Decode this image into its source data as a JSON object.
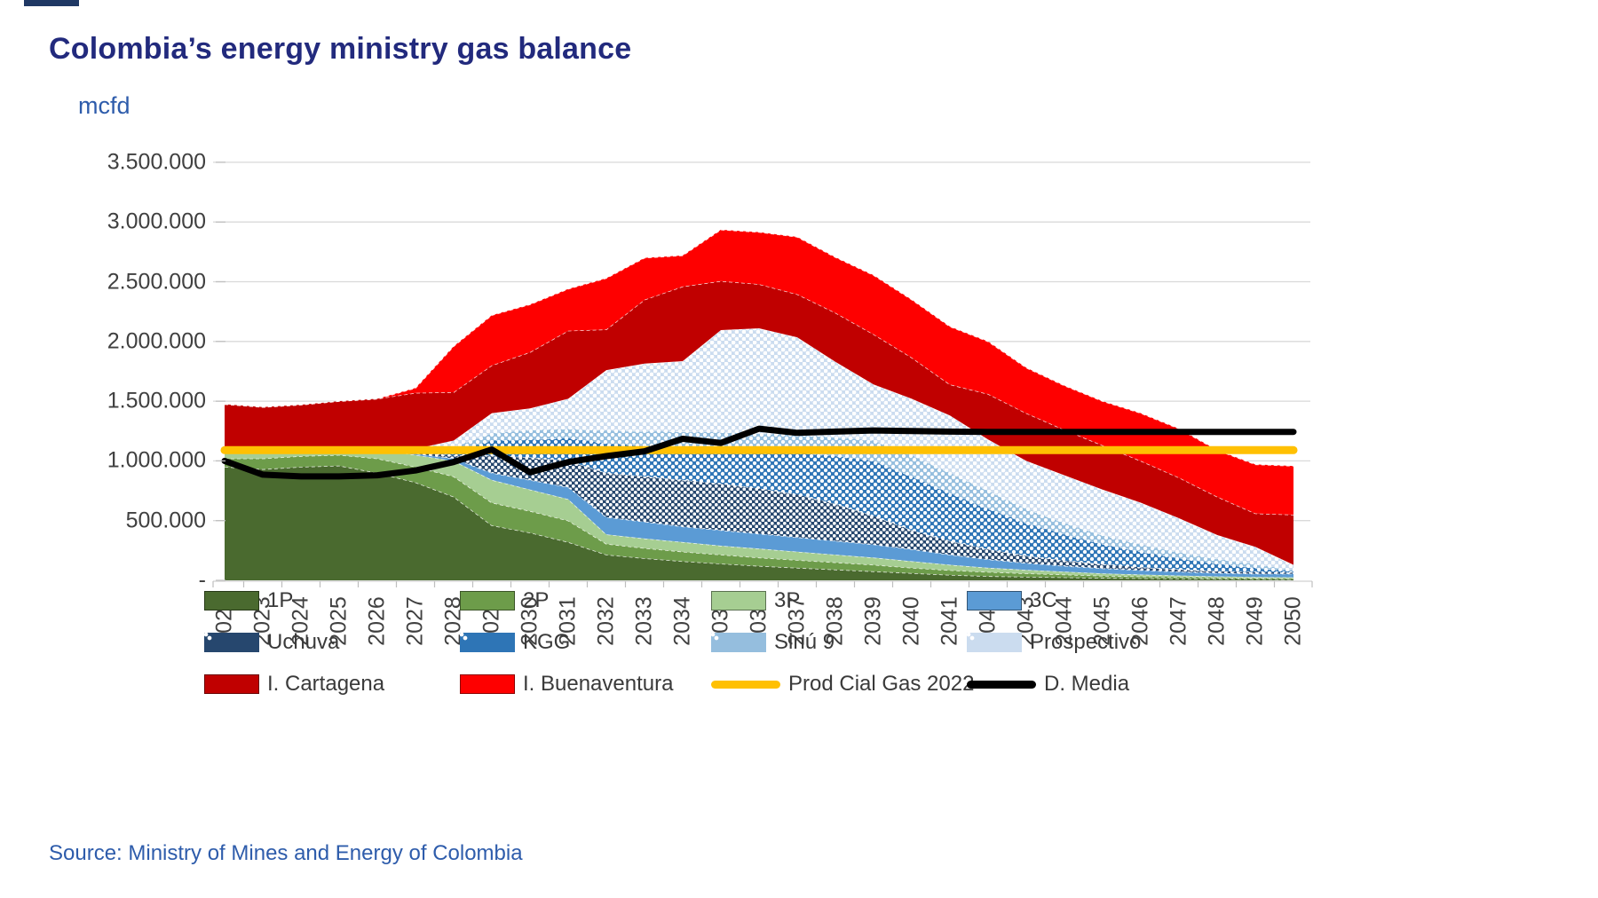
{
  "header": {
    "title": "Colombia’s energy ministry gas balance",
    "unit_label": "mcfd"
  },
  "source_line": "Source: Ministry of Mines and Energy of Colombia",
  "colors": {
    "title_text": "#222a7d",
    "axis_text": "#404040",
    "blue_text": "#2e5cab",
    "gridline": "#d9d9d9",
    "tick": "#bfbfbf",
    "series_1p": "#4a6a2f",
    "series_2p": "#6d9c4a",
    "series_3p": "#a6ce92",
    "series_3c": "#5b9bd5",
    "series_uchuva": "#26476e",
    "series_kgg": "#2e75b6",
    "series_sinu9": "#95bede",
    "series_prospectivo": "#cbdcef",
    "series_cartagena": "#c00000",
    "series_buenaventura": "#fe0000",
    "series_prod": "#ffc002",
    "series_dmedia": "#000000"
  },
  "chart_data": {
    "type": "area",
    "stacked": true,
    "grid": true,
    "legend_position": "bottom",
    "title": "Colombia’s energy ministry gas balance",
    "ylabel": "mcfd",
    "ylim": [
      0,
      3500000
    ],
    "y_ticks": [
      {
        "value": 3500000,
        "label": "3.500.000"
      },
      {
        "value": 3000000,
        "label": "3.000.000"
      },
      {
        "value": 2500000,
        "label": "2.500.000"
      },
      {
        "value": 2000000,
        "label": "2.000.000"
      },
      {
        "value": 1500000,
        "label": "1.500.000"
      },
      {
        "value": 1000000,
        "label": "1.000.000"
      },
      {
        "value": 500000,
        "label": "500.000"
      },
      {
        "value": 0,
        "label": "-"
      }
    ],
    "categories": [
      "2022",
      "2023",
      "2024",
      "2025",
      "2026",
      "2027",
      "2028",
      "2029",
      "2030",
      "2031",
      "2032",
      "2033",
      "2034",
      "2035",
      "2036",
      "2037",
      "2038",
      "2039",
      "2040",
      "2041",
      "2042",
      "2043",
      "2044",
      "2045",
      "2046",
      "2047",
      "2048",
      "2049",
      "2050"
    ],
    "series": [
      {
        "name": "1P",
        "type": "area",
        "color": "#4a6a2f",
        "pattern": null,
        "values": [
          950000,
          930000,
          950000,
          960000,
          900000,
          820000,
          700000,
          460000,
          400000,
          320000,
          215000,
          185000,
          160000,
          140000,
          120000,
          105000,
          90000,
          75000,
          60000,
          45000,
          35000,
          30000,
          25000,
          20000,
          18000,
          15000,
          12000,
          11000,
          10000
        ]
      },
      {
        "name": "2P",
        "type": "area",
        "color": "#6d9c4a",
        "pattern": null,
        "values": [
          70000,
          90000,
          90000,
          90000,
          120000,
          130000,
          170000,
          190000,
          180000,
          180000,
          90000,
          85000,
          80000,
          75000,
          70000,
          65000,
          60000,
          55000,
          45000,
          40000,
          35000,
          28000,
          23000,
          18000,
          15000,
          13000,
          11000,
          9000,
          8000
        ]
      },
      {
        "name": "3P",
        "type": "area",
        "color": "#a6ce92",
        "pattern": null,
        "values": [
          70000,
          70000,
          60000,
          60000,
          80000,
          100000,
          130000,
          190000,
          180000,
          180000,
          80000,
          80000,
          80000,
          75000,
          75000,
          70000,
          65000,
          60000,
          55000,
          45000,
          35000,
          30000,
          25000,
          20000,
          15000,
          12000,
          10000,
          8000,
          7000
        ]
      },
      {
        "name": "3C",
        "type": "area",
        "color": "#5b9bd5",
        "pattern": null,
        "values": [
          0,
          0,
          0,
          0,
          5000,
          10000,
          20000,
          60000,
          80000,
          100000,
          145000,
          140000,
          130000,
          130000,
          125000,
          120000,
          115000,
          110000,
          100000,
          85000,
          70000,
          57000,
          47000,
          42000,
          37000,
          32000,
          29000,
          27000,
          30000
        ]
      },
      {
        "name": "Uchuva",
        "type": "area",
        "color": "#26476e",
        "pattern": "pat-uchuva",
        "values": [
          0,
          0,
          0,
          0,
          0,
          10000,
          25000,
          145000,
          190000,
          220000,
          370000,
          380000,
          390000,
          390000,
          380000,
          360000,
          310000,
          240000,
          160000,
          115000,
          85000,
          60000,
          45000,
          35000,
          25000,
          20000,
          15000,
          13000,
          10000
        ]
      },
      {
        "name": "KGG",
        "type": "area",
        "color": "#2e75b6",
        "pattern": "pat-kgg",
        "values": [
          0,
          0,
          0,
          0,
          0,
          10000,
          35000,
          125000,
          150000,
          190000,
          245000,
          260000,
          280000,
          300000,
          320000,
          350000,
          400000,
          460000,
          450000,
          400000,
          340000,
          275000,
          220000,
          170000,
          130000,
          93000,
          63000,
          37000,
          13000
        ]
      },
      {
        "name": "Sinú 9",
        "type": "area",
        "color": "#95bede",
        "pattern": "pat-sinu",
        "values": [
          0,
          0,
          0,
          0,
          5000,
          20000,
          40000,
          60000,
          80000,
          80000,
          110000,
          120000,
          125000,
          130000,
          140000,
          150000,
          160000,
          170000,
          180000,
          170000,
          150000,
          120000,
          95000,
          75000,
          60000,
          50000,
          40000,
          30000,
          7000
        ]
      },
      {
        "name": "Prospectivo",
        "type": "area",
        "color": "#cbdcef",
        "pattern": "pat-prosp",
        "values": [
          0,
          0,
          0,
          0,
          0,
          0,
          50000,
          170000,
          180000,
          250000,
          505000,
          565000,
          590000,
          855000,
          880000,
          815000,
          630000,
          470000,
          470000,
          480000,
          430000,
          400000,
          400000,
          380000,
          350000,
          285000,
          200000,
          145000,
          45000
        ]
      },
      {
        "name": "I. Cartagena",
        "type": "area",
        "color": "#c00000",
        "pattern": null,
        "values": [
          385000,
          360000,
          370000,
          390000,
          410000,
          470000,
          405000,
          400000,
          470000,
          570000,
          340000,
          535000,
          625000,
          410000,
          370000,
          360000,
          410000,
          420000,
          345000,
          260000,
          380000,
          400000,
          380000,
          370000,
          350000,
          340000,
          320000,
          280000,
          420000
        ]
      },
      {
        "name": "I. Buenaventura",
        "type": "area",
        "color": "#fe0000",
        "pattern": null,
        "values": [
          0,
          0,
          0,
          0,
          0,
          40000,
          385000,
          420000,
          400000,
          350000,
          430000,
          350000,
          260000,
          430000,
          435000,
          480000,
          465000,
          495000,
          485000,
          485000,
          440000,
          380000,
          370000,
          370000,
          400000,
          410000,
          390000,
          410000,
          408000
        ]
      },
      {
        "name": "Prod Cial Gas 2022",
        "type": "line",
        "color": "#ffc002",
        "width": 9,
        "values": [
          1090000,
          1090000,
          1090000,
          1090000,
          1090000,
          1090000,
          1090000,
          1090000,
          1090000,
          1090000,
          1090000,
          1090000,
          1090000,
          1090000,
          1090000,
          1090000,
          1090000,
          1090000,
          1090000,
          1090000,
          1090000,
          1090000,
          1090000,
          1090000,
          1090000,
          1090000,
          1090000,
          1090000,
          1090000
        ]
      },
      {
        "name": "D. Media",
        "type": "line",
        "color": "#000000",
        "width": 7,
        "values": [
          1000000,
          885000,
          870000,
          870000,
          880000,
          920000,
          990000,
          1095000,
          905000,
          990000,
          1040000,
          1080000,
          1185000,
          1150000,
          1270000,
          1235000,
          1245000,
          1255000,
          1250000,
          1245000,
          1243000,
          1243000,
          1243000,
          1243000,
          1243000,
          1243000,
          1243000,
          1243000,
          1243000
        ]
      }
    ]
  },
  "legend": {
    "items": [
      {
        "label": "1P",
        "swatch": "solid",
        "color": "#4a6a2f"
      },
      {
        "label": "2P",
        "swatch": "solid",
        "color": "#6d9c4a"
      },
      {
        "label": "3P",
        "swatch": "solid",
        "color": "#a6ce92"
      },
      {
        "label": "3C",
        "swatch": "solid",
        "color": "#5b9bd5"
      },
      {
        "label": "Uchuva",
        "swatch": "pattern",
        "color": "#26476e"
      },
      {
        "label": "KGG",
        "swatch": "pattern",
        "color": "#2e75b6"
      },
      {
        "label": "Sinú 9",
        "swatch": "pattern",
        "color": "#95bede"
      },
      {
        "label": "Prospectivo",
        "swatch": "pattern",
        "color": "#cbdcef"
      },
      {
        "label": "I. Cartagena",
        "swatch": "solid",
        "color": "#c00000"
      },
      {
        "label": "I. Buenaventura",
        "swatch": "solid",
        "color": "#fe0000"
      },
      {
        "label": "Prod Cial Gas 2022",
        "swatch": "line",
        "color": "#ffc002"
      },
      {
        "label": "D. Media",
        "swatch": "line",
        "color": "#000000"
      }
    ]
  }
}
